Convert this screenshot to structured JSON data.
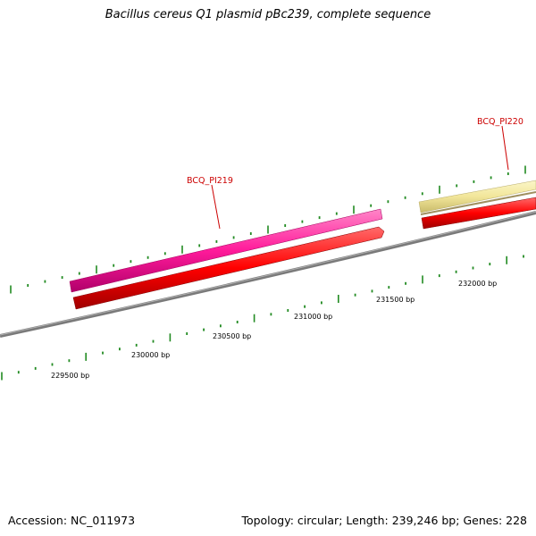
{
  "title": "Bacillus cereus Q1 plasmid pBc239, complete sequence",
  "features": [
    {
      "name": "BCQ_PI219",
      "kind": "gene",
      "strand": "+",
      "color": "#ff1a9a",
      "label_color": "#cc0000"
    },
    {
      "name": "BCQ_PI220",
      "kind": "gene",
      "strand": "+",
      "color": "#f2e69a",
      "label_color": "#cc0000"
    }
  ],
  "cds_color": "#ff0000",
  "backbone_color": "#808080",
  "tick_color": "#228b22",
  "scale_labels": [
    "229500 bp",
    "230000 bp",
    "230500 bp",
    "231000 bp",
    "231500 bp",
    "232000 bp"
  ],
  "footer": {
    "accession_label": "Accession:",
    "accession_value": "NC_011973",
    "topology_label": "Topology:",
    "topology_value": "circular",
    "length_label": "Length:",
    "length_value": "239,246 bp",
    "genes_label": "Genes:",
    "genes_value": "228"
  }
}
